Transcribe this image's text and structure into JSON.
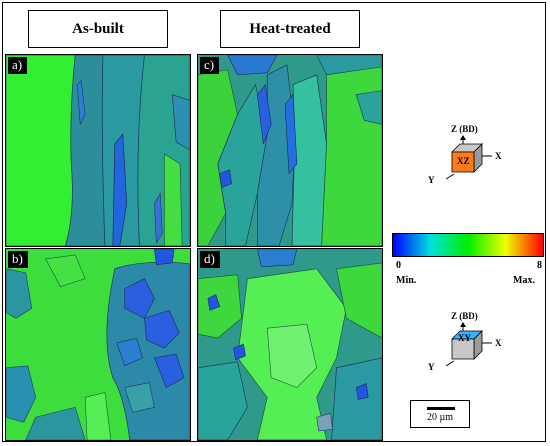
{
  "headers": {
    "left": "As-built",
    "right": "Heat-treated"
  },
  "panels": {
    "a": "a)",
    "b": "b)",
    "c": "c)",
    "d": "d)"
  },
  "orientation_top": {
    "z": "Z (BD)",
    "x": "X",
    "y": "Y",
    "face": "XZ",
    "face_color": "#ff7a1a"
  },
  "orientation_bottom": {
    "z": "Z (BD)",
    "x": "X",
    "y": "Y",
    "face": "XY",
    "face_color": "#33b5ff"
  },
  "colorbar": {
    "min_value": "0",
    "max_value": "8",
    "min_label": "Min.",
    "max_label": "Max.",
    "colors": [
      "#0000ff",
      "#00e0e0",
      "#00ee00",
      "#eeff00",
      "#ff0000"
    ]
  },
  "scalebar": {
    "label": "20 µm"
  }
}
